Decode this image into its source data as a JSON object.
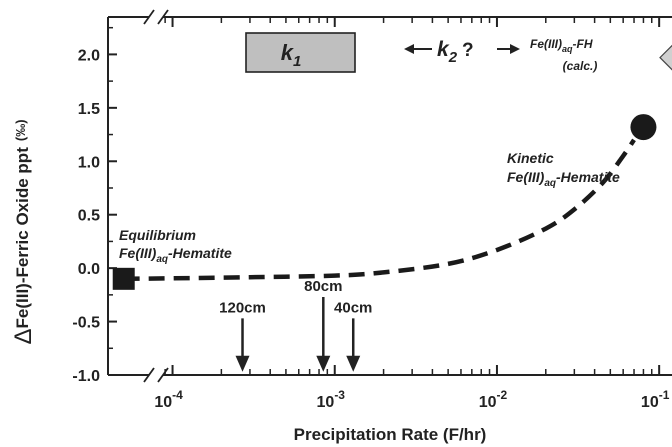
{
  "chart_data": {
    "type": "scatter",
    "xlabel": "Precipitation Rate (F/hr)",
    "ylabel_prefix": "Δ",
    "ylabel_main": "Fe(III)-Ferric Oxide ppt",
    "ylabel_unit": "(‰)",
    "xscale": "log",
    "xlim": [
      4e-05,
      0.12
    ],
    "ylim": [
      -1.0,
      2.35
    ],
    "x_ticks": [
      {
        "value": 0.0001,
        "base": "10",
        "exp": "-4"
      },
      {
        "value": 0.001,
        "base": "10",
        "exp": "-3"
      },
      {
        "value": 0.01,
        "base": "10",
        "exp": "-2"
      },
      {
        "value": 0.1,
        "base": "10",
        "exp": "-1"
      }
    ],
    "y_ticks": [
      {
        "value": 2.0,
        "label": "2.0"
      },
      {
        "value": 1.5,
        "label": "1.5"
      },
      {
        "value": 1.0,
        "label": "1.0"
      },
      {
        "value": 0.5,
        "label": "0.5"
      },
      {
        "value": 0.0,
        "label": "0.0"
      },
      {
        "value": -0.5,
        "label": "-0.5"
      },
      {
        "value": -1.0,
        "label": "-1.0"
      }
    ],
    "points": [
      {
        "name": "equilibrium",
        "x": 5e-05,
        "y": -0.1,
        "marker": "square",
        "color": "#1a1a1a"
      },
      {
        "name": "kinetic",
        "x": 0.08,
        "y": 1.32,
        "marker": "circle",
        "color": "#1a1a1a"
      },
      {
        "name": "fh-calc",
        "x": 0.12,
        "y": 1.97,
        "marker": "diamond",
        "color": "#d0d0d0"
      }
    ],
    "curve": {
      "style": "dashed",
      "points": [
        [
          5e-05,
          -0.1
        ],
        [
          0.0001,
          -0.095
        ],
        [
          0.0003,
          -0.085
        ],
        [
          0.001,
          -0.07
        ],
        [
          0.002,
          -0.04
        ],
        [
          0.005,
          0.04
        ],
        [
          0.01,
          0.17
        ],
        [
          0.02,
          0.37
        ],
        [
          0.03,
          0.55
        ],
        [
          0.045,
          0.8
        ],
        [
          0.06,
          1.05
        ],
        [
          0.07,
          1.2
        ]
      ]
    },
    "annotations": {
      "equilibrium_line1": "Equilibrium",
      "equilibrium_line2_a": "Fe(III)",
      "equilibrium_line2_sub": "aq",
      "equilibrium_line2_b": "-Hematite",
      "kinetic_line1": "Kinetic",
      "kinetic_line2_a": "Fe(III)",
      "kinetic_line2_sub": "aq",
      "kinetic_line2_b": "-Hematite",
      "fh_line1_a": "Fe(III)",
      "fh_line1_sub": "aq",
      "fh_line1_b": "-FH",
      "fh_line2": "(calc.)",
      "k1_main": "k",
      "k1_sub": "1",
      "k2_main": "k",
      "k2_sub": "2",
      "k2_q": "?"
    },
    "depth_arrows": [
      {
        "label": "120cm",
        "x": 0.00027,
        "y_top": -0.47,
        "y_tip": -0.97
      },
      {
        "label": "80cm",
        "x": 0.00085,
        "y_top": -0.27,
        "y_tip": -0.97
      },
      {
        "label": "40cm",
        "x": 0.0013,
        "y_top": -0.47,
        "y_tip": -0.97
      }
    ],
    "colors": {
      "k1_box": "#bfbfbf",
      "marker": "#1a1a1a",
      "diamond": "#d0d0d0"
    }
  }
}
